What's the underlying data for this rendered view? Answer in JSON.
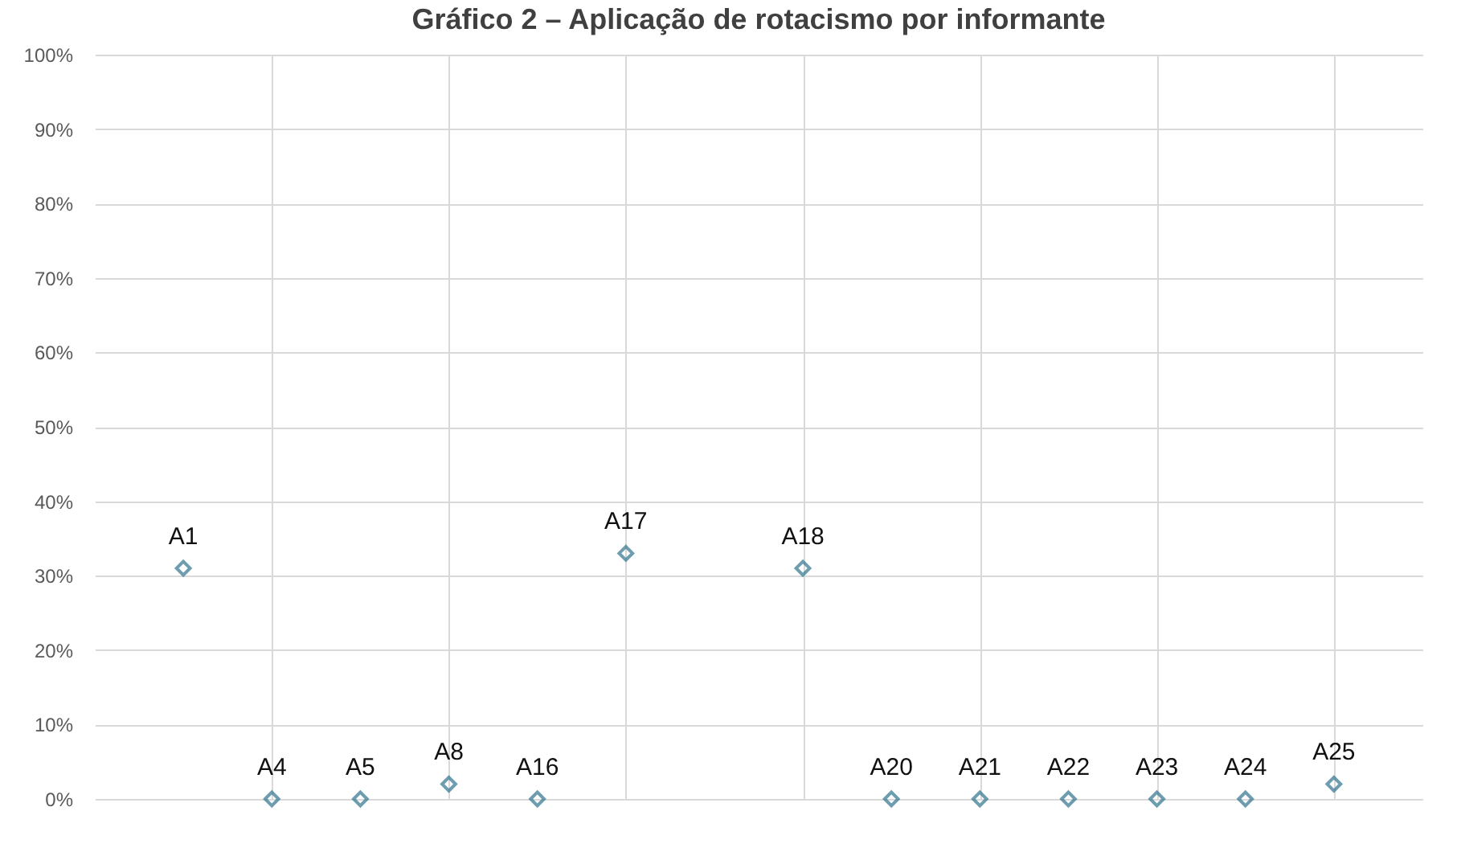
{
  "chart_data": {
    "type": "scatter",
    "title": "Gráfico 2 – Aplicação de rotacismo por informante",
    "categories": [
      null,
      null,
      null,
      null,
      null,
      null,
      null,
      null,
      null,
      null,
      null,
      null,
      null,
      null
    ],
    "series": [
      {
        "color": "#31758f",
        "values": [
          31,
          0,
          0,
          2,
          0,
          33,
          null,
          31,
          0,
          0,
          0,
          0,
          0,
          2
        ],
        "value_labels": [
          "A1",
          "A4",
          "A5",
          "A8",
          "A16",
          "A17",
          null,
          "A18",
          "A20",
          "A21",
          "A22",
          "A23",
          "A24",
          "A25"
        ]
      }
    ],
    "ylim": [
      0,
      100
    ],
    "yticks": [
      {
        "value": 0,
        "label": "0%"
      },
      {
        "value": 10,
        "label": "10%"
      },
      {
        "value": 20,
        "label": "20%"
      },
      {
        "value": 30,
        "label": "30%"
      },
      {
        "value": 40,
        "label": "40%"
      },
      {
        "value": 50,
        "label": "50%"
      },
      {
        "value": 60,
        "label": "60%"
      },
      {
        "value": 70,
        "label": "70%"
      },
      {
        "value": 80,
        "label": "80%"
      },
      {
        "value": 90,
        "label": "90%"
      },
      {
        "value": 100,
        "label": "100%"
      }
    ],
    "grid": true,
    "marker": "diamond"
  }
}
